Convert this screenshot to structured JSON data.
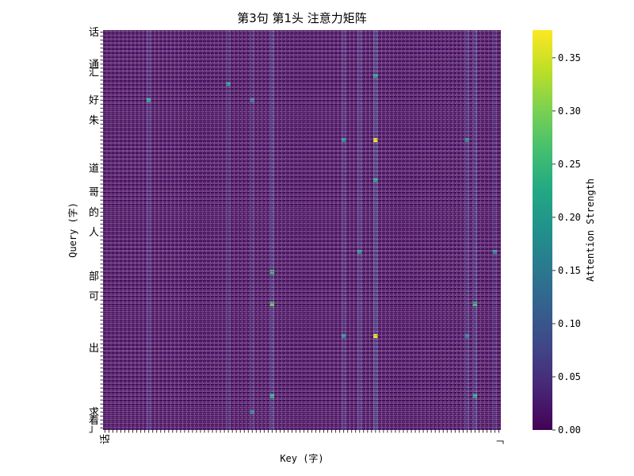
{
  "chart_data": {
    "type": "heatmap",
    "title": "第3句 第1头 注意力矩阵",
    "xlabel": "Key (字)",
    "ylabel": "Query (字)",
    "rows": 100,
    "cols": 100,
    "colormap": "viridis",
    "grid": false,
    "base_value": 0.01,
    "column_levels": [
      [
        11,
        0.035
      ],
      [
        31,
        0.03
      ],
      [
        37,
        0.03
      ],
      [
        42,
        0.045
      ],
      [
        60,
        0.035
      ],
      [
        64,
        0.04
      ],
      [
        68,
        0.055
      ],
      [
        91,
        0.035
      ],
      [
        93,
        0.045
      ],
      [
        98,
        0.03
      ]
    ],
    "highlights": [
      [
        27,
        68,
        0.375
      ],
      [
        76,
        68,
        0.37
      ],
      [
        60,
        42,
        0.25
      ],
      [
        68,
        42,
        0.28
      ],
      [
        68,
        93,
        0.25
      ],
      [
        91,
        42,
        0.22
      ],
      [
        91,
        93,
        0.2
      ],
      [
        17,
        11,
        0.21
      ],
      [
        17,
        37,
        0.14
      ],
      [
        13,
        31,
        0.18
      ],
      [
        11,
        68,
        0.19
      ],
      [
        37,
        68,
        0.2
      ],
      [
        55,
        64,
        0.17
      ],
      [
        55,
        98,
        0.15
      ],
      [
        27,
        60,
        0.17
      ],
      [
        76,
        60,
        0.17
      ],
      [
        27,
        91,
        0.15
      ],
      [
        76,
        91,
        0.14
      ],
      [
        95,
        37,
        0.14
      ]
    ],
    "row_tick_labels": [
      [
        0,
        "话"
      ],
      [
        8,
        "通"
      ],
      [
        10,
        "汇"
      ],
      [
        17,
        "好"
      ],
      [
        22,
        "朱"
      ],
      [
        34,
        "道"
      ],
      [
        40,
        "哥"
      ],
      [
        45,
        "的"
      ],
      [
        50,
        "人"
      ],
      [
        61,
        "部"
      ],
      [
        66,
        "可"
      ],
      [
        79,
        "出"
      ],
      [
        95,
        "求"
      ],
      [
        97,
        "着"
      ],
      [
        99,
        "」"
      ]
    ],
    "col_tick_labels": [
      [
        0,
        "话"
      ],
      [
        99,
        "」"
      ]
    ],
    "colorbar": {
      "label": "Attention Strength",
      "range": [
        0,
        0.376
      ],
      "ticks": [
        0,
        0.05,
        0.1,
        0.15,
        0.2,
        0.25,
        0.3,
        0.35
      ],
      "tick_labels": [
        "0.00",
        "0.05",
        "0.10",
        "0.15",
        "0.20",
        "0.25",
        "0.30",
        "0.35"
      ]
    }
  }
}
